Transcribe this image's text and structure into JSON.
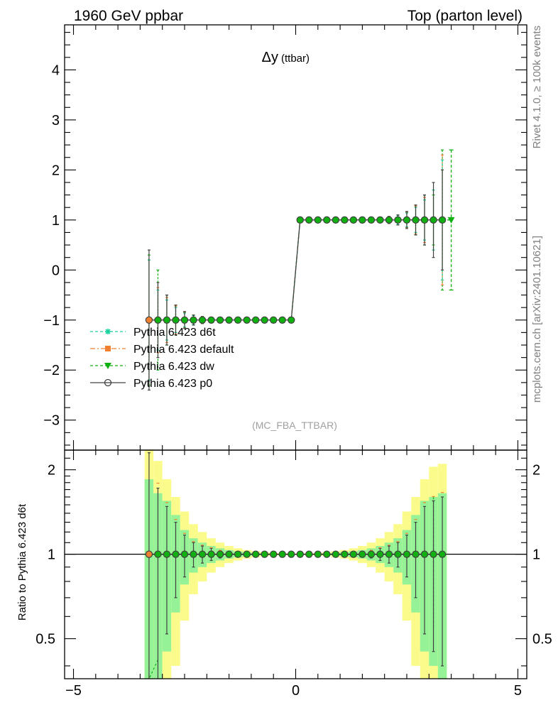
{
  "header": {
    "left_title": "1960 GeV ppbar",
    "right_title": "Top (parton level)"
  },
  "plot": {
    "title_symbol": "Δy",
    "title_sub": "(ttbar)",
    "watermark": "(MC_FBA_TTBAR)",
    "side_label_top": "Rivet 4.1.0, ≥ 100k events",
    "side_label_bottom": "mcplots.cern.ch [arXiv:2401.10621]",
    "ratio_ylabel": "Ratio to Pythia 6.423 d6t"
  },
  "colors": {
    "d6t": "#17d19e",
    "default": "#f08030",
    "dw": "#10b010",
    "p0": "#404040",
    "band_yellow": "#fbfb8c",
    "band_green": "#96f296"
  },
  "legend": [
    {
      "key": "d6t",
      "label": "Pythia 6.423 d6t",
      "marker": "star",
      "dash": "4,3"
    },
    {
      "key": "default",
      "label": "Pythia 6.423 default",
      "marker": "square",
      "dash": "7,3,2,3"
    },
    {
      "key": "dw",
      "label": "Pythia 6.423 dw",
      "marker": "triangle",
      "dash": "4,3"
    },
    {
      "key": "p0",
      "label": "Pythia 6.423 p0",
      "marker": "circle",
      "dash": ""
    }
  ],
  "chart_data": {
    "type": "line",
    "x": [
      -3.3,
      -3.1,
      -2.9,
      -2.7,
      -2.5,
      -2.3,
      -2.1,
      -1.9,
      -1.7,
      -1.5,
      -1.3,
      -1.1,
      -0.9,
      -0.7,
      -0.5,
      -0.3,
      -0.1,
      0.1,
      0.3,
      0.5,
      0.7,
      0.9,
      1.1,
      1.3,
      1.5,
      1.7,
      1.9,
      2.1,
      2.3,
      2.5,
      2.7,
      2.9,
      3.1,
      3.3
    ],
    "y": [
      -1,
      -1,
      -1,
      -1,
      -1,
      -1,
      -1,
      -1,
      -1,
      -1,
      -1,
      -1,
      -1,
      -1,
      -1,
      -1,
      -1,
      1,
      1,
      1,
      1,
      1,
      1,
      1,
      1,
      1,
      1,
      1,
      1,
      1,
      1,
      1,
      1,
      1
    ],
    "xlim": [
      -5.2,
      5.2
    ],
    "ylim": [
      -3.6,
      4.9
    ],
    "x_ticks": [
      -5,
      0,
      5
    ],
    "x_tick_labels": [
      "−5",
      "0",
      "5"
    ],
    "y_ticks": [
      -3,
      -2,
      -1,
      0,
      1,
      2,
      3,
      4
    ],
    "y_tick_labels": [
      "−3",
      "−2",
      "−1",
      "0",
      "1",
      "2",
      "3",
      "4"
    ],
    "errors": {
      "p0": [
        1.4,
        0.75,
        0.5,
        0.3,
        0.17,
        0.1,
        0.07,
        0.05,
        0.03,
        0.02,
        0.01,
        0.0,
        0.0,
        0.0,
        0.0,
        0.0,
        0.0,
        0.0,
        0.0,
        0.0,
        0.0,
        0.0,
        0.0,
        0.01,
        0.02,
        0.03,
        0.05,
        0.07,
        0.1,
        0.17,
        0.3,
        0.5,
        0.75,
        1.0
      ],
      "d6t": [
        1.2,
        0.6,
        0.4,
        0.25,
        0.14,
        0.09,
        0.06,
        0.04,
        0.03,
        0.02,
        0.01,
        0.0,
        0.0,
        0.0,
        0.0,
        0.0,
        0.0,
        0.0,
        0.0,
        0.0,
        0.0,
        0.0,
        0.0,
        0.01,
        0.02,
        0.03,
        0.04,
        0.06,
        0.09,
        0.14,
        0.25,
        0.4,
        0.6,
        1.2
      ],
      "default": [
        1.2,
        0.65,
        0.45,
        0.28,
        0.15,
        0.1,
        0.07,
        0.05,
        0.03,
        0.02,
        0.01,
        0.0,
        0.0,
        0.0,
        0.0,
        0.0,
        0.0,
        0.0,
        0.0,
        0.0,
        0.0,
        0.0,
        0.0,
        0.01,
        0.02,
        0.03,
        0.05,
        0.07,
        0.1,
        0.15,
        0.28,
        0.45,
        0.6,
        1.3
      ],
      "dw": [
        1.3,
        1.0,
        0.5,
        0.28,
        0.15,
        0.1,
        0.07,
        0.05,
        0.03,
        0.02,
        0.01,
        0.0,
        0.0,
        0.0,
        0.0,
        0.0,
        0.0,
        0.0,
        0.0,
        0.0,
        0.0,
        0.0,
        0.0,
        0.01,
        0.02,
        0.03,
        0.05,
        0.07,
        0.1,
        0.15,
        0.28,
        0.5,
        0.5,
        1.4
      ]
    },
    "dw_extra_point": {
      "x": 3.5,
      "y": 1,
      "err": 1.4
    },
    "ratio": {
      "ylim": [
        0.36,
        2.35
      ],
      "log_scale": true,
      "y_ticks": [
        0.5,
        1,
        2
      ],
      "y_tick_labels": [
        "0.5",
        "1",
        "2"
      ],
      "band_green_halfwidth": [
        0.85,
        0.65,
        0.55,
        0.38,
        0.22,
        0.14,
        0.1,
        0.07,
        0.05,
        0.035,
        0.025,
        0.018,
        0.012,
        0.008,
        0.005,
        0.004,
        0.003,
        0.003,
        0.004,
        0.005,
        0.008,
        0.012,
        0.018,
        0.025,
        0.035,
        0.05,
        0.07,
        0.1,
        0.14,
        0.22,
        0.38,
        0.55,
        0.6,
        0.65
      ],
      "band_yellow_halfwidth": [
        1.35,
        1.15,
        0.85,
        0.6,
        0.42,
        0.28,
        0.2,
        0.14,
        0.1,
        0.07,
        0.05,
        0.035,
        0.025,
        0.016,
        0.01,
        0.007,
        0.005,
        0.005,
        0.007,
        0.01,
        0.016,
        0.025,
        0.035,
        0.05,
        0.07,
        0.1,
        0.14,
        0.2,
        0.28,
        0.42,
        0.6,
        0.85,
        1.05,
        1.1
      ],
      "err_p0": [
        1.3,
        0.72,
        0.48,
        0.3,
        0.17,
        0.1,
        0.07,
        0.05,
        0.03,
        0.02,
        0.01,
        0.005,
        0.0,
        0.0,
        0.0,
        0.0,
        0.0,
        0.0,
        0.0,
        0.0,
        0.0,
        0.0,
        0.005,
        0.01,
        0.02,
        0.03,
        0.05,
        0.07,
        0.1,
        0.17,
        0.3,
        0.48,
        0.55,
        0.6
      ]
    }
  }
}
